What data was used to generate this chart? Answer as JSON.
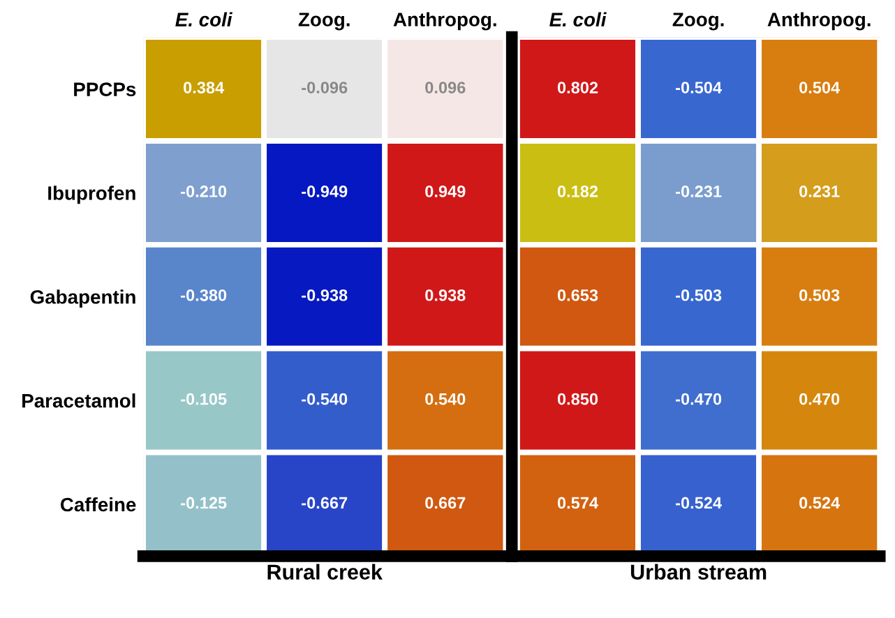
{
  "chart_data": [
    {
      "type": "heatmap",
      "xlabel": "Rural creek",
      "categories": [
        "E. coli",
        "Zoog.",
        "Anthropog."
      ],
      "y_categories": [
        "PPCPs",
        "Ibuprofen",
        "Gabapentin",
        "Paracetamol",
        "Caffeine"
      ],
      "cells": [
        [
          0.384,
          -0.096,
          0.096
        ],
        [
          -0.21,
          -0.949,
          0.949
        ],
        [
          -0.38,
          -0.938,
          0.938
        ],
        [
          -0.105,
          -0.54,
          0.54
        ],
        [
          -0.125,
          -0.667,
          0.667
        ]
      ],
      "cell_labels": [
        [
          "0.384",
          "-0.096",
          "0.096"
        ],
        [
          "-0.210",
          "-0.949",
          "0.949"
        ],
        [
          "-0.380",
          "-0.938",
          "0.938"
        ],
        [
          "-0.105",
          "-0.540",
          "0.540"
        ],
        [
          "-0.125",
          "-0.667",
          "0.667"
        ]
      ]
    },
    {
      "type": "heatmap",
      "xlabel": "Urban stream",
      "categories": [
        "E. coli",
        "Zoog.",
        "Anthropog."
      ],
      "y_categories": [
        null,
        null,
        null,
        null,
        null
      ],
      "cells": [
        [
          0.802,
          -0.504,
          0.504
        ],
        [
          0.182,
          -0.231,
          0.231
        ],
        [
          0.653,
          -0.503,
          0.503
        ],
        [
          0.85,
          -0.47,
          0.47
        ],
        [
          0.574,
          -0.524,
          0.524
        ]
      ],
      "cell_labels": [
        [
          "0.802",
          "-0.504",
          "0.504"
        ],
        [
          "0.182",
          "-0.231",
          "0.231"
        ],
        [
          "0.653",
          "-0.503",
          "0.503"
        ],
        [
          "0.850",
          "-0.470",
          "0.470"
        ],
        [
          "0.574",
          "-0.524",
          "0.524"
        ]
      ]
    }
  ]
}
